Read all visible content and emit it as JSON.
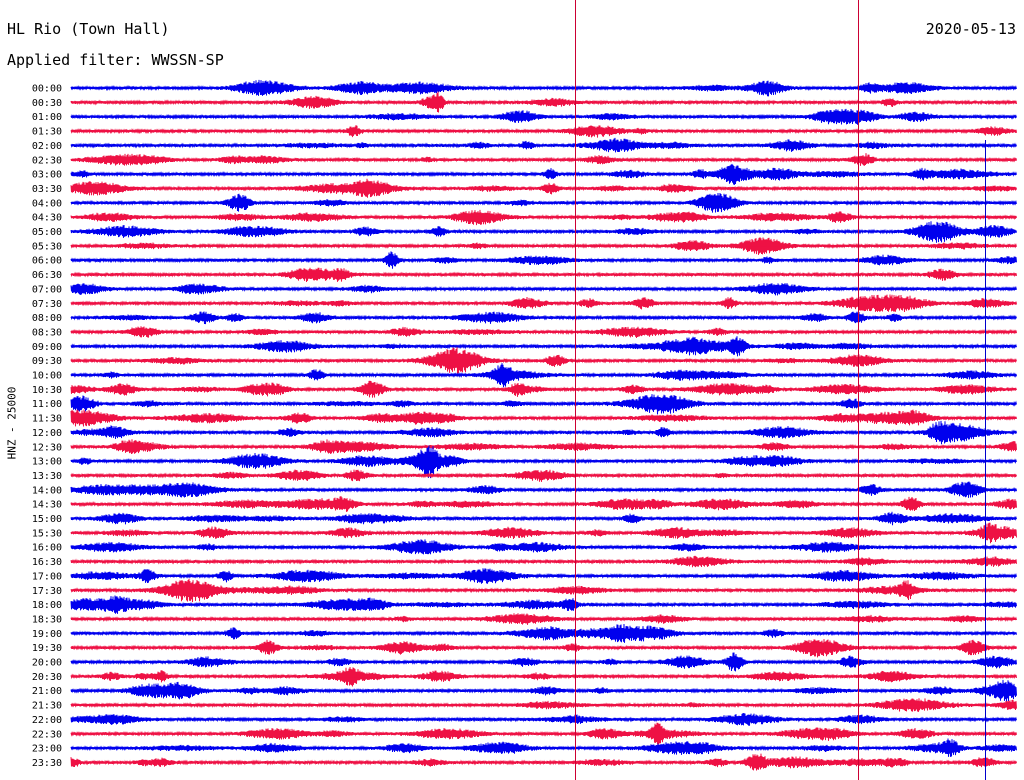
{
  "header": {
    "station": "HL Rio (Town Hall)",
    "filter": "Applied filter: WWSSN-SP",
    "date": "2020-05-13"
  },
  "chart_data": {
    "type": "line",
    "title": "HL Rio (Town Hall)",
    "subtitle": "Applied filter: WWSSN-SP",
    "date": "2020-05-13",
    "ylabel": "HNZ - 25000",
    "row_labels": [
      "00:00",
      "00:30",
      "01:00",
      "01:30",
      "02:00",
      "02:30",
      "03:00",
      "03:30",
      "04:00",
      "04:30",
      "05:00",
      "05:30",
      "06:00",
      "06:30",
      "07:00",
      "07:30",
      "08:00",
      "08:30",
      "09:00",
      "09:30",
      "10:00",
      "10:30",
      "11:00",
      "11:30",
      "12:00",
      "12:30",
      "13:00",
      "13:30",
      "14:00",
      "14:30",
      "15:00",
      "15:30",
      "16:00",
      "16:30",
      "17:00",
      "17:30",
      "18:00",
      "18:30",
      "19:00",
      "19:30",
      "20:00",
      "20:30",
      "21:00",
      "21:30",
      "22:00",
      "22:30",
      "23:00",
      "23:30"
    ],
    "trace_colors": [
      "#0000ee",
      "#ee1144"
    ],
    "marker_color": "#cc0033",
    "current_time_color": "#0000cc"
  }
}
